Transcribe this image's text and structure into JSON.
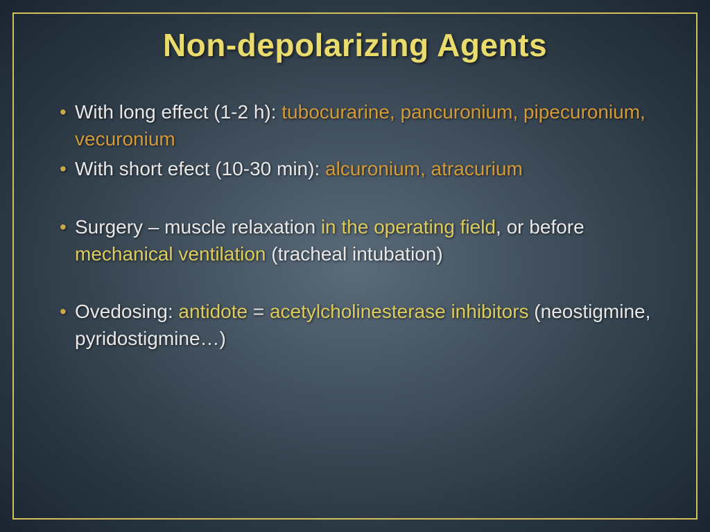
{
  "title": "Non-depolarizing Agents",
  "colors": {
    "border": "#d4c05a",
    "title": "#eadb6d",
    "body_text": "#e8e8e8",
    "highlight_orange": "#d39a3a",
    "highlight_yellow": "#dccb5e",
    "bg_center": "#5a6b7a",
    "bg_edge": "#1a2530"
  },
  "typography": {
    "title_fontsize": 46,
    "body_fontsize": 28,
    "title_weight": "bold",
    "font_family": "Arial"
  },
  "bullets": {
    "b1": {
      "prefix": "With long effect (1-2 h): ",
      "drugs": "tubocurarine, pancuronium, pipecuronium, vecuronium"
    },
    "b2": {
      "prefix": "With short efect (10-30 min): ",
      "drugs": "alcuronium, atracurium"
    },
    "b3": {
      "p1": "Surgery – muscle relaxation ",
      "h1": "in the operating field",
      "p2": ", or before ",
      "h2": "mechanical ventilation ",
      "p3": "(tracheal intubation)"
    },
    "b4": {
      "p1": "Ovedosing: ",
      "h1": "antidote",
      "p2": " = ",
      "h2": "acetylcholinesterase inhibitors ",
      "p3": "(neostigmine, pyridostigmine…)"
    }
  }
}
